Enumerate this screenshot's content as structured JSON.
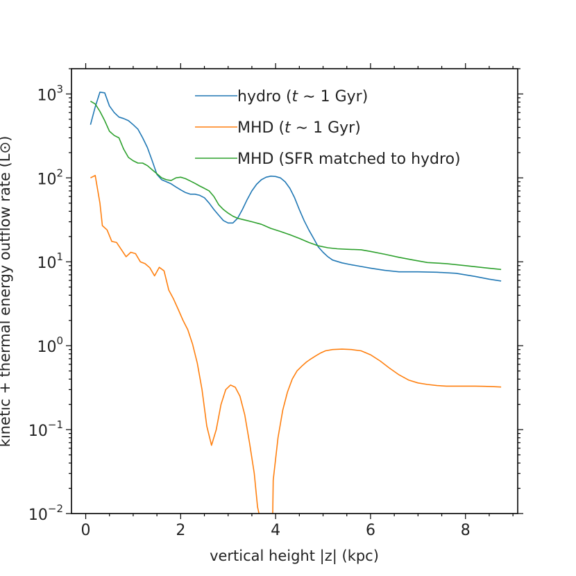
{
  "chart_data": {
    "type": "line",
    "y_scale": "log",
    "xlabel": "vertical height |z| (kpc)",
    "ylabel": "kinetic + thermal energy outflow rate (L⊙)",
    "xlim": [
      -0.3,
      9.1
    ],
    "ylim": [
      0.01,
      2000
    ],
    "x_ticks": [
      {
        "value": 0,
        "label": "0"
      },
      {
        "value": 2,
        "label": "2"
      },
      {
        "value": 4,
        "label": "4"
      },
      {
        "value": 6,
        "label": "6"
      },
      {
        "value": 8,
        "label": "8"
      }
    ],
    "y_ticks": [
      {
        "value": 0.01,
        "base": "10",
        "exp": "−2"
      },
      {
        "value": 0.1,
        "base": "10",
        "exp": "−1"
      },
      {
        "value": 1,
        "base": "10",
        "exp": "0"
      },
      {
        "value": 10,
        "base": "10",
        "exp": "1"
      },
      {
        "value": 100,
        "base": "10",
        "exp": "2"
      },
      {
        "value": 1000,
        "base": "10",
        "exp": "3"
      }
    ],
    "legend_position": "top-right",
    "series": [
      {
        "name": "hydro (t ∼ 1 Gyr)",
        "legend_parts": [
          "hydro (",
          "t",
          " ∼ 1 Gyr)"
        ],
        "color": "#1f77b4",
        "points": [
          [
            0.1,
            430
          ],
          [
            0.2,
            700
          ],
          [
            0.3,
            1050
          ],
          [
            0.4,
            1030
          ],
          [
            0.5,
            720
          ],
          [
            0.6,
            600
          ],
          [
            0.7,
            530
          ],
          [
            0.8,
            510
          ],
          [
            0.9,
            480
          ],
          [
            1.0,
            430
          ],
          [
            1.1,
            380
          ],
          [
            1.2,
            300
          ],
          [
            1.3,
            230
          ],
          [
            1.4,
            160
          ],
          [
            1.5,
            110
          ],
          [
            1.6,
            95
          ],
          [
            1.7,
            90
          ],
          [
            1.8,
            85
          ],
          [
            1.9,
            78
          ],
          [
            2.0,
            72
          ],
          [
            2.1,
            67
          ],
          [
            2.2,
            64
          ],
          [
            2.3,
            64
          ],
          [
            2.4,
            62
          ],
          [
            2.5,
            58
          ],
          [
            2.6,
            50
          ],
          [
            2.7,
            42
          ],
          [
            2.8,
            36
          ],
          [
            2.9,
            31
          ],
          [
            3.0,
            29
          ],
          [
            3.1,
            29
          ],
          [
            3.2,
            33
          ],
          [
            3.3,
            42
          ],
          [
            3.4,
            55
          ],
          [
            3.5,
            70
          ],
          [
            3.6,
            84
          ],
          [
            3.7,
            95
          ],
          [
            3.8,
            102
          ],
          [
            3.9,
            105
          ],
          [
            4.0,
            104
          ],
          [
            4.1,
            100
          ],
          [
            4.2,
            90
          ],
          [
            4.3,
            75
          ],
          [
            4.4,
            58
          ],
          [
            4.5,
            42
          ],
          [
            4.6,
            31
          ],
          [
            4.7,
            24
          ],
          [
            4.8,
            19
          ],
          [
            4.9,
            15
          ],
          [
            5.0,
            13
          ],
          [
            5.1,
            11.5
          ],
          [
            5.2,
            10.5
          ],
          [
            5.4,
            9.7
          ],
          [
            5.6,
            9.2
          ],
          [
            5.8,
            8.8
          ],
          [
            6.0,
            8.4
          ],
          [
            6.3,
            7.9
          ],
          [
            6.6,
            7.6
          ],
          [
            7.0,
            7.6
          ],
          [
            7.4,
            7.5
          ],
          [
            7.8,
            7.3
          ],
          [
            8.2,
            6.7
          ],
          [
            8.5,
            6.2
          ],
          [
            8.75,
            5.9
          ]
        ]
      },
      {
        "name": "MHD (t ∼ 1 Gyr)",
        "legend_parts": [
          "MHD (",
          "t",
          " ∼ 1 Gyr)"
        ],
        "color": "#ff7f0e",
        "points": [
          [
            0.1,
            100
          ],
          [
            0.2,
            107
          ],
          [
            0.3,
            50
          ],
          [
            0.35,
            27
          ],
          [
            0.45,
            24
          ],
          [
            0.55,
            17.5
          ],
          [
            0.65,
            17
          ],
          [
            0.75,
            14
          ],
          [
            0.85,
            11.5
          ],
          [
            0.95,
            13
          ],
          [
            1.05,
            12.5
          ],
          [
            1.15,
            10
          ],
          [
            1.25,
            9.5
          ],
          [
            1.35,
            8.5
          ],
          [
            1.45,
            6.8
          ],
          [
            1.55,
            8.6
          ],
          [
            1.65,
            7.8
          ],
          [
            1.75,
            4.6
          ],
          [
            1.85,
            3.6
          ],
          [
            1.95,
            2.7
          ],
          [
            2.05,
            2.0
          ],
          [
            2.15,
            1.55
          ],
          [
            2.25,
            1.05
          ],
          [
            2.35,
            0.62
          ],
          [
            2.45,
            0.3
          ],
          [
            2.55,
            0.11
          ],
          [
            2.65,
            0.065
          ],
          [
            2.75,
            0.1
          ],
          [
            2.85,
            0.2
          ],
          [
            2.95,
            0.3
          ],
          [
            3.05,
            0.34
          ],
          [
            3.15,
            0.32
          ],
          [
            3.25,
            0.25
          ],
          [
            3.35,
            0.15
          ],
          [
            3.45,
            0.07
          ],
          [
            3.55,
            0.03
          ],
          [
            3.62,
            0.012
          ],
          [
            3.65,
            0.01
          ]
        ],
        "points_2": [
          [
            3.94,
            0.01
          ],
          [
            3.95,
            0.025
          ],
          [
            4.05,
            0.08
          ],
          [
            4.15,
            0.17
          ],
          [
            4.25,
            0.28
          ],
          [
            4.35,
            0.4
          ],
          [
            4.45,
            0.5
          ],
          [
            4.55,
            0.57
          ],
          [
            4.65,
            0.64
          ],
          [
            4.75,
            0.7
          ],
          [
            4.85,
            0.76
          ],
          [
            4.95,
            0.82
          ],
          [
            5.05,
            0.87
          ],
          [
            5.2,
            0.9
          ],
          [
            5.4,
            0.91
          ],
          [
            5.6,
            0.9
          ],
          [
            5.8,
            0.87
          ],
          [
            6.0,
            0.78
          ],
          [
            6.2,
            0.66
          ],
          [
            6.4,
            0.54
          ],
          [
            6.6,
            0.45
          ],
          [
            6.8,
            0.39
          ],
          [
            7.0,
            0.36
          ],
          [
            7.2,
            0.345
          ],
          [
            7.4,
            0.335
          ],
          [
            7.6,
            0.33
          ],
          [
            7.8,
            0.33
          ],
          [
            8.0,
            0.33
          ],
          [
            8.2,
            0.33
          ],
          [
            8.4,
            0.328
          ],
          [
            8.6,
            0.325
          ],
          [
            8.75,
            0.322
          ]
        ]
      },
      {
        "name": "MHD (SFR matched to hydro)",
        "legend_parts": [
          "MHD (SFR matched to hydro)",
          "",
          ""
        ],
        "color": "#2ca02c",
        "points": [
          [
            0.1,
            820
          ],
          [
            0.2,
            760
          ],
          [
            0.3,
            620
          ],
          [
            0.4,
            480
          ],
          [
            0.5,
            360
          ],
          [
            0.6,
            320
          ],
          [
            0.7,
            300
          ],
          [
            0.8,
            220
          ],
          [
            0.9,
            175
          ],
          [
            1.0,
            160
          ],
          [
            1.1,
            150
          ],
          [
            1.2,
            150
          ],
          [
            1.3,
            140
          ],
          [
            1.4,
            125
          ],
          [
            1.5,
            112
          ],
          [
            1.6,
            100
          ],
          [
            1.7,
            95
          ],
          [
            1.8,
            93
          ],
          [
            1.9,
            100
          ],
          [
            2.0,
            102
          ],
          [
            2.1,
            98
          ],
          [
            2.2,
            92
          ],
          [
            2.3,
            86
          ],
          [
            2.4,
            80
          ],
          [
            2.5,
            75
          ],
          [
            2.6,
            70
          ],
          [
            2.7,
            60
          ],
          [
            2.8,
            48
          ],
          [
            2.9,
            42
          ],
          [
            3.0,
            38
          ],
          [
            3.1,
            35
          ],
          [
            3.2,
            33
          ],
          [
            3.3,
            32
          ],
          [
            3.4,
            31
          ],
          [
            3.5,
            30
          ],
          [
            3.7,
            28
          ],
          [
            3.9,
            25
          ],
          [
            4.1,
            23
          ],
          [
            4.3,
            21
          ],
          [
            4.5,
            19
          ],
          [
            4.7,
            17
          ],
          [
            4.9,
            15.5
          ],
          [
            5.1,
            14.7
          ],
          [
            5.3,
            14.3
          ],
          [
            5.5,
            14.1
          ],
          [
            5.8,
            13.9
          ],
          [
            6.0,
            13.3
          ],
          [
            6.3,
            12.3
          ],
          [
            6.6,
            11.3
          ],
          [
            6.9,
            10.5
          ],
          [
            7.2,
            9.8
          ],
          [
            7.6,
            9.5
          ],
          [
            8.0,
            9.0
          ],
          [
            8.4,
            8.5
          ],
          [
            8.75,
            8.1
          ]
        ]
      }
    ]
  }
}
